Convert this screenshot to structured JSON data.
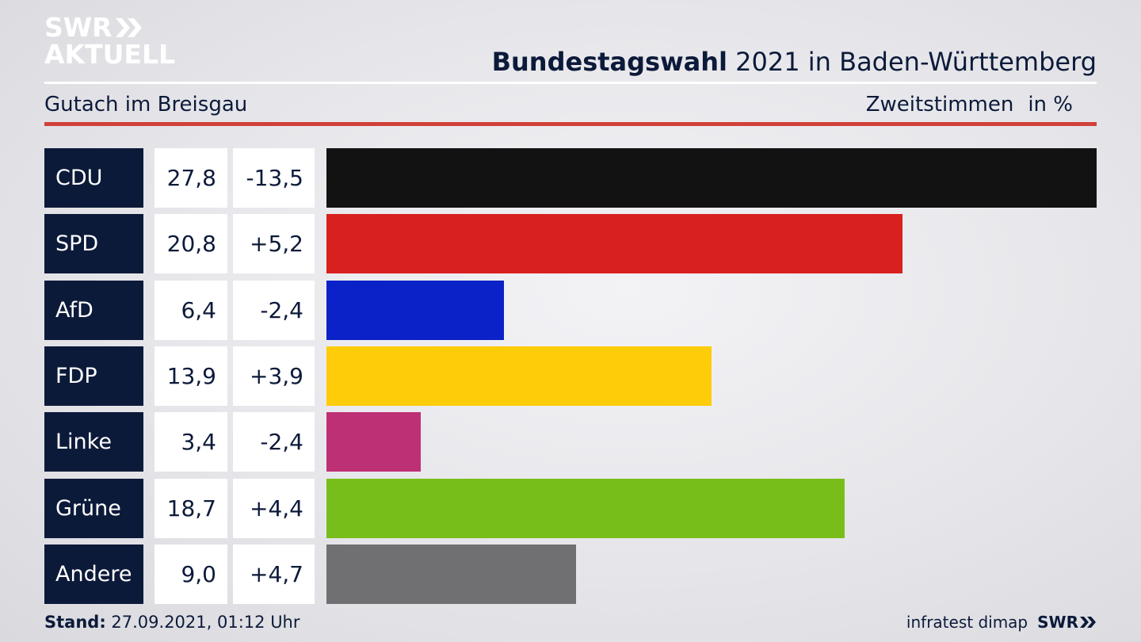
{
  "logo": {
    "line1": "SWR",
    "line2": "AKTUELL"
  },
  "header": {
    "title_bold": "Bundestagswahl",
    "title_rest": "2021 in Baden-Württemberg",
    "region": "Gutach im Breisgau",
    "metric": "Zweitstimmen",
    "unit": "in %"
  },
  "chart_data": {
    "type": "bar",
    "orientation": "horizontal",
    "categories": [
      "CDU",
      "SPD",
      "AfD",
      "FDP",
      "Linke",
      "Grüne",
      "Andere"
    ],
    "values": [
      27.8,
      20.8,
      6.4,
      13.9,
      3.4,
      18.7,
      9.0
    ],
    "value_labels": [
      "27,8",
      "20,8",
      "6,4",
      "13,9",
      "3,4",
      "18,7",
      "9,0"
    ],
    "changes": [
      -13.5,
      5.2,
      -2.4,
      3.9,
      -2.4,
      4.4,
      4.7
    ],
    "change_labels": [
      "-13,5",
      "+5,2",
      "-2,4",
      "+3,9",
      "-2,4",
      "+4,4",
      "+4,7"
    ],
    "colors": [
      "#121212",
      "#d8211f",
      "#0a22c8",
      "#fecc08",
      "#be3075",
      "#78be1a",
      "#707073"
    ],
    "xlim": [
      0,
      27.8
    ],
    "grid": false
  },
  "footer": {
    "stand_label": "Stand:",
    "stand_value": "27.09.2021, 01:12 Uhr",
    "source": "infratest dimap",
    "brand": "SWR"
  }
}
